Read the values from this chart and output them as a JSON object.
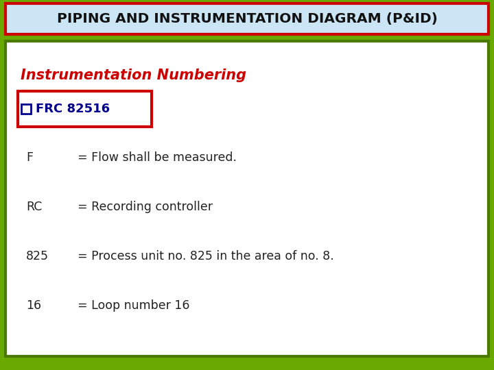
{
  "title": "PIPING AND INSTRUMENTATION DIAGRAM (P&ID)",
  "title_bg": "#cce5f5",
  "title_color": "#111111",
  "title_border": "#cc0000",
  "bg_outer": "#6aaa00",
  "bg_inner": "#ffffff",
  "inner_border_color": "#4a7a00",
  "section_title": "Instrumentation Numbering",
  "section_title_color": "#cc0000",
  "badge_text_color": "#00008B",
  "badge_border": "#cc0000",
  "badge_bg": "#ffffff",
  "rows": [
    {
      "label": "F",
      "desc": "= Flow shall be measured."
    },
    {
      "label": "RC",
      "desc": "= Recording controller"
    },
    {
      "label": "825",
      "desc": "= Process unit no. 825 in the area of no. 8."
    },
    {
      "label": "16",
      "desc": "= Loop number 16"
    }
  ],
  "row_color": "#222222",
  "fig_width": 7.2,
  "fig_height": 5.4,
  "dpi": 100
}
